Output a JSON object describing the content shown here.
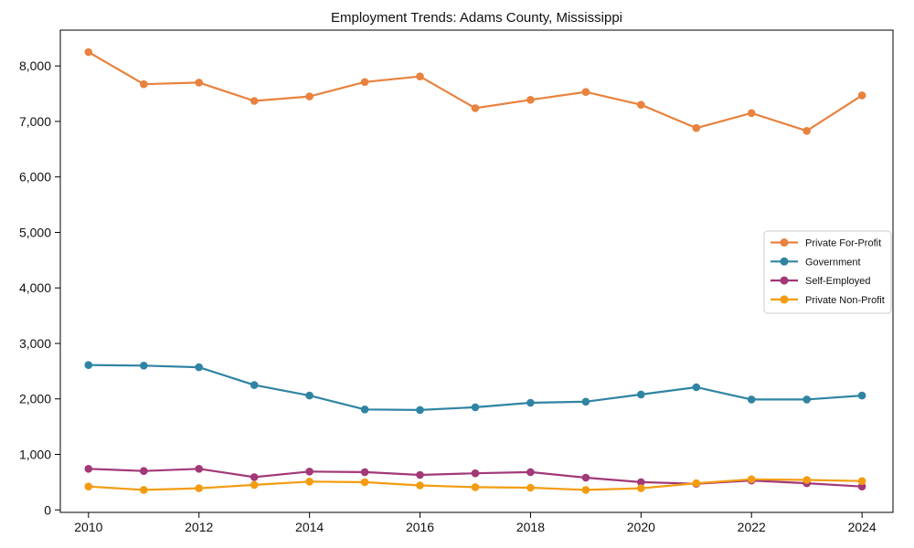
{
  "chart_data": {
    "type": "line",
    "title": "Employment Trends: Adams County, Mississippi",
    "xlabel": "",
    "ylabel": "",
    "grid": false,
    "legend_position": "center right",
    "xlim": [
      2009.49,
      2024.56
    ],
    "ylim": [
      -45,
      8645
    ],
    "x": [
      2010,
      2011,
      2012,
      2013,
      2014,
      2015,
      2016,
      2017,
      2018,
      2019,
      2020,
      2021,
      2022,
      2023,
      2024
    ],
    "x_ticks": [
      2010,
      2012,
      2014,
      2016,
      2018,
      2020,
      2022,
      2024
    ],
    "x_tick_labels": [
      "2010",
      "2012",
      "2014",
      "2016",
      "2018",
      "2020",
      "2022",
      "2024"
    ],
    "y_ticks": [
      0,
      1000,
      2000,
      3000,
      4000,
      5000,
      6000,
      7000,
      8000
    ],
    "y_tick_labels": [
      "0",
      "1,000",
      "2,000",
      "3,000",
      "4,000",
      "5,000",
      "6,000",
      "7,000",
      "8,000"
    ],
    "series": [
      {
        "name": "Private For-Profit",
        "color": "#e8823e",
        "values": [
          8250,
          7670,
          7700,
          7370,
          7450,
          7710,
          7810,
          7240,
          7390,
          7530,
          7300,
          6880,
          7150,
          6830,
          7470
        ]
      },
      {
        "name": "Government",
        "color": "#2f84a3",
        "values": [
          2610,
          2600,
          2570,
          2250,
          2060,
          1810,
          1800,
          1850,
          1930,
          1950,
          2080,
          2210,
          1990,
          1990,
          2060
        ]
      },
      {
        "name": "Self-Employed",
        "color": "#a23878",
        "values": [
          740,
          700,
          740,
          590,
          690,
          680,
          630,
          660,
          680,
          580,
          500,
          470,
          530,
          480,
          420
        ]
      },
      {
        "name": "Private Non-Profit",
        "color": "#f39c11",
        "values": [
          420,
          360,
          390,
          450,
          510,
          500,
          440,
          410,
          400,
          360,
          390,
          480,
          550,
          540,
          520
        ]
      }
    ],
    "style": {
      "text_color": "#111111",
      "axis_color": "#000000",
      "legend_border_color": "#cccccc",
      "background": "#ffffff",
      "line_width": 2.2,
      "marker_radius": 4.3
    }
  }
}
